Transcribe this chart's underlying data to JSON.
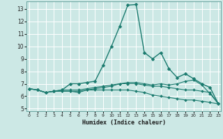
{
  "xlabel": "Humidex (Indice chaleur)",
  "bg_color": "#cce8e5",
  "grid_color": "#ffffff",
  "line_color": "#1a7a6e",
  "x_ticks": [
    0,
    1,
    2,
    3,
    4,
    5,
    6,
    7,
    8,
    9,
    10,
    11,
    12,
    13,
    14,
    15,
    16,
    17,
    18,
    19,
    20,
    21,
    22,
    23
  ],
  "y_ticks": [
    5,
    6,
    7,
    8,
    9,
    10,
    11,
    12,
    13
  ],
  "ylim": [
    4.8,
    13.6
  ],
  "xlim": [
    -0.3,
    23.3
  ],
  "lines": [
    [
      6.6,
      6.5,
      6.3,
      6.4,
      6.5,
      7.0,
      7.0,
      7.1,
      7.2,
      8.5,
      10.0,
      11.6,
      13.3,
      13.35,
      9.5,
      9.0,
      9.5,
      8.2,
      7.5,
      7.8,
      7.4,
      7.0,
      6.7,
      5.4
    ],
    [
      6.6,
      6.5,
      6.3,
      6.4,
      6.5,
      6.5,
      6.5,
      6.6,
      6.7,
      6.8,
      6.9,
      7.0,
      7.0,
      7.0,
      6.9,
      6.8,
      6.8,
      6.7,
      6.6,
      6.5,
      6.5,
      6.4,
      6.3,
      5.4
    ],
    [
      6.6,
      6.5,
      6.3,
      6.4,
      6.4,
      6.4,
      6.4,
      6.5,
      6.5,
      6.5,
      6.5,
      6.5,
      6.5,
      6.4,
      6.3,
      6.1,
      6.0,
      5.9,
      5.8,
      5.7,
      5.7,
      5.6,
      5.5,
      5.4
    ],
    [
      6.6,
      6.5,
      6.3,
      6.4,
      6.4,
      6.4,
      6.3,
      6.5,
      6.6,
      6.7,
      6.8,
      7.0,
      7.1,
      7.1,
      7.0,
      6.9,
      7.0,
      6.9,
      7.0,
      7.2,
      7.3,
      6.9,
      6.2,
      5.4
    ]
  ]
}
